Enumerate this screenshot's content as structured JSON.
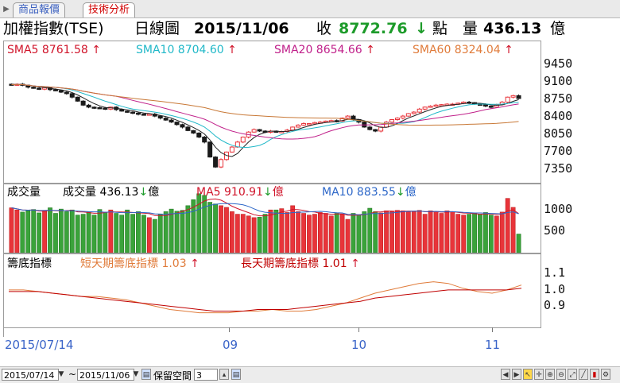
{
  "tabs": [
    {
      "label": "商品報價"
    },
    {
      "label": "技術分析"
    }
  ],
  "header": {
    "name": "加權指數(TSE)",
    "period": "日線圖",
    "date": "2015/11/06",
    "close_label": "收",
    "close_value": "8772.76",
    "unit_points": "點",
    "volume_label": "量",
    "volume_value": "436.13",
    "unit_volume": "億"
  },
  "price_legend": {
    "sma5": "SMA5 8761.58",
    "sma10": "SMA10 8704.60",
    "sma20": "SMA20 8654.66",
    "sma60": "SMA60 8324.04"
  },
  "volume_legend": {
    "title": "成交量",
    "vol_label": "成交量",
    "vol_value": "436.13",
    "unit": "億",
    "ma5": "MA5 910.91",
    "ma10": "MA10 883.55"
  },
  "indicator_legend": {
    "title": "籌底指標",
    "short": "短天期籌底指標 1.03",
    "long": "長天期籌底指標 1.01"
  },
  "x_labels": {
    "start": "2015/07/14",
    "m9": "09",
    "m10": "10",
    "m11": "11"
  },
  "bottom": {
    "from_date": "2015/07/14",
    "tilde": "~",
    "to_date": "2015/11/06",
    "keep_label": "保留空間",
    "keep_value": "3"
  },
  "colors": {
    "up": "#e8343a",
    "down": "#1a1a1a",
    "vol_down": "#3aa33a",
    "sma5": "#222222",
    "sma10": "#20b8c8",
    "sma20": "#c0208a",
    "sma60": "#c87836",
    "head_green": "#1d9b2a",
    "axis_blue": "#3a64c8"
  },
  "chart_data": [
    {
      "type": "candlestick",
      "title": "加權指數(TSE) 日線圖",
      "x_range": [
        "2015/07/14",
        "2015/11/06"
      ],
      "y_ticks": [
        9450,
        9100,
        8750,
        8400,
        8050,
        7700,
        7350
      ],
      "ylim": [
        7180,
        9600
      ],
      "close": [
        9050,
        9060,
        9040,
        9000,
        8980,
        8960,
        8990,
        8950,
        8930,
        8900,
        8870,
        8800,
        8720,
        8640,
        8600,
        8590,
        8580,
        8560,
        8600,
        8550,
        8520,
        8500,
        8480,
        8460,
        8450,
        8460,
        8420,
        8380,
        8340,
        8300,
        8250,
        8200,
        8130,
        8080,
        8000,
        7900,
        7600,
        7400,
        7550,
        7700,
        7800,
        7900,
        8000,
        8100,
        8150,
        8120,
        8100,
        8120,
        8100,
        8110,
        8140,
        8200,
        8240,
        8270,
        8270,
        8290,
        8300,
        8320,
        8330,
        8320,
        8380,
        8420,
        8350,
        8300,
        8200,
        8150,
        8120,
        8200,
        8300,
        8350,
        8380,
        8420,
        8470,
        8500,
        8560,
        8600,
        8620,
        8640,
        8650,
        8660,
        8660,
        8680,
        8700,
        8690,
        8660,
        8650,
        8620,
        8600,
        8650,
        8700,
        8800,
        8830,
        8772.76
      ],
      "series": [
        {
          "name": "SMA5"
        },
        {
          "name": "SMA10"
        },
        {
          "name": "SMA20"
        },
        {
          "name": "SMA60"
        }
      ]
    },
    {
      "type": "bar",
      "title": "成交量",
      "y_ticks": [
        1000,
        500
      ],
      "ylim": [
        0,
        1450
      ],
      "values": [
        1050,
        1000,
        950,
        980,
        1010,
        930,
        990,
        1050,
        920,
        1020,
        960,
        1000,
        880,
        900,
        950,
        880,
        1010,
        950,
        1000,
        920,
        880,
        1000,
        900,
        960,
        880,
        820,
        780,
        900,
        960,
        1020,
        970,
        990,
        1100,
        1240,
        1380,
        1340,
        1180,
        1140,
        1100,
        1060,
        960,
        900,
        900,
        860,
        820,
        830,
        900,
        1000,
        1000,
        1030,
        940,
        1100,
        960,
        920,
        880,
        900,
        940,
        920,
        860,
        920,
        900,
        780,
        920,
        880,
        960,
        1040,
        960,
        930,
        980,
        960,
        990,
        980,
        960,
        960,
        990,
        900,
        980,
        960,
        920,
        980,
        960,
        900,
        880,
        900,
        920,
        900,
        940,
        880,
        860,
        950,
        1270,
        1060,
        436.13
      ],
      "series": [
        {
          "name": "MA5"
        },
        {
          "name": "MA10"
        }
      ]
    },
    {
      "type": "line",
      "title": "籌底指標",
      "y_ticks": [
        1.1,
        1.0,
        0.9
      ],
      "ylim": [
        0.78,
        1.17
      ],
      "series": [
        {
          "name": "短天期籌底指標",
          "values": [
            1.0,
            1.0,
            0.99,
            0.98,
            0.97,
            0.96,
            0.96,
            0.95,
            0.94,
            0.92,
            0.9,
            0.88,
            0.87,
            0.86,
            0.86,
            0.86,
            0.87,
            0.87,
            0.88,
            0.87,
            0.87,
            0.88,
            0.9,
            0.92,
            0.95,
            0.98,
            1.0,
            1.02,
            1.04,
            1.05,
            1.04,
            1.01,
            0.99,
            0.98,
            1.0,
            1.03
          ]
        },
        {
          "name": "長天期籌底指標",
          "values": [
            0.99,
            0.99,
            0.99,
            0.98,
            0.97,
            0.96,
            0.95,
            0.94,
            0.93,
            0.92,
            0.91,
            0.9,
            0.89,
            0.88,
            0.87,
            0.87,
            0.87,
            0.88,
            0.88,
            0.88,
            0.89,
            0.9,
            0.91,
            0.92,
            0.93,
            0.95,
            0.96,
            0.97,
            0.98,
            0.99,
            1.0,
            1.0,
            1.0,
            1.0,
            1.0,
            1.01
          ]
        }
      ]
    }
  ]
}
